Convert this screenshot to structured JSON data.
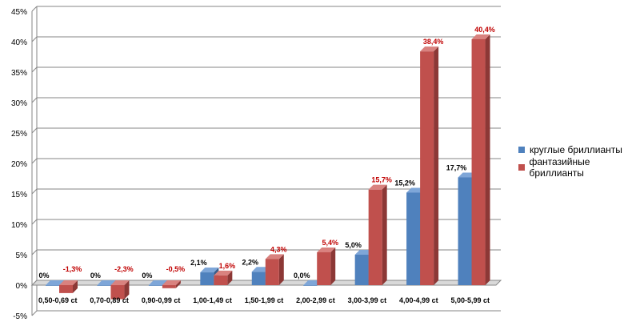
{
  "chart_data": {
    "type": "bar",
    "categories": [
      "0,50-0,69  ct",
      "0,70-0,89  ct",
      "0,90-0,99  ct",
      "1,00-1,49 ct",
      "1,50-1,99 ct",
      "2,00-2,99 ct",
      "3,00-3,99 ct",
      "4,00-4,99 ct",
      "5,00-5,99 ct"
    ],
    "series": [
      {
        "name": "круглые бриллианты",
        "color": "#4f81bd",
        "side": "#385d8a",
        "top": "#7ea6d8",
        "values": [
          0,
          0,
          0,
          2.1,
          2.2,
          0.0,
          5.0,
          15.2,
          17.7
        ],
        "labels": [
          "0%",
          "0%",
          "0%",
          "2,1%",
          "2,2%",
          "0,0%",
          "5,0%",
          "15,2%",
          "17,7%"
        ]
      },
      {
        "name": "фантазийные бриллианты",
        "color": "#c0504d",
        "side": "#8c3836",
        "top": "#d9827f",
        "values": [
          -1.3,
          -2.3,
          -0.5,
          1.6,
          4.3,
          5.4,
          15.7,
          38.4,
          40.4
        ],
        "labels": [
          "-1,3%",
          "-2,3%",
          "-0,5%",
          "1,6%",
          "4,3%",
          "5,4%",
          "15,7%",
          "38,4%",
          "40,4%"
        ]
      }
    ],
    "yticks": [
      "-5%",
      "0%",
      "5%",
      "10%",
      "15%",
      "20%",
      "25%",
      "30%",
      "35%",
      "40%",
      "45%"
    ],
    "ylim": [
      -5,
      45
    ],
    "grid": true,
    "legend_position": "right",
    "title": "",
    "xlabel": "",
    "ylabel": ""
  }
}
